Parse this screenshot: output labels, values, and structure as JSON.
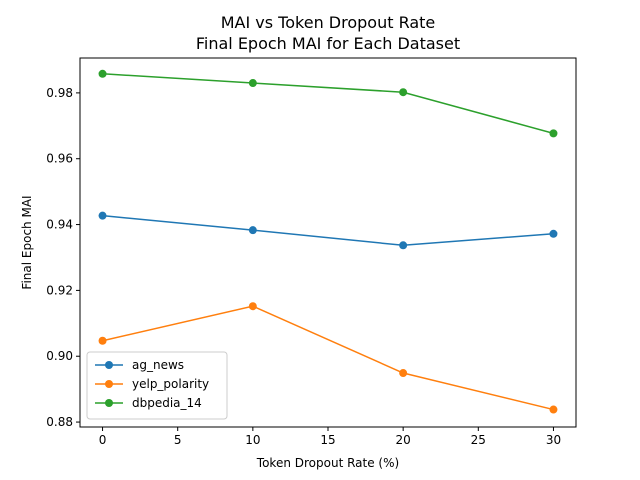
{
  "chart_data": {
    "type": "line",
    "title": "MAI vs Token Dropout Rate",
    "subtitle": "Final Epoch MAI for Each Dataset",
    "xlabel": "Token Dropout Rate (%)",
    "ylabel": "Final Epoch MAI",
    "x": [
      0,
      10,
      20,
      30
    ],
    "xlim": [
      -1.5,
      31.5
    ],
    "ylim": [
      0.8785,
      0.9906
    ],
    "xticks": [
      0,
      5,
      10,
      15,
      20,
      25,
      30
    ],
    "yticks": [
      0.88,
      0.9,
      0.92,
      0.94,
      0.96,
      0.98
    ],
    "xtick_labels": [
      "0",
      "5",
      "10",
      "15",
      "20",
      "25",
      "30"
    ],
    "ytick_labels": [
      "0.88",
      "0.90",
      "0.92",
      "0.94",
      "0.96",
      "0.98"
    ],
    "grid": false,
    "legend_position": "lower-left",
    "series": [
      {
        "name": "ag_news",
        "color": "#1f77b4",
        "values": [
          0.9427,
          0.9383,
          0.9337,
          0.9372
        ]
      },
      {
        "name": "yelp_polarity",
        "color": "#ff7f0e",
        "values": [
          0.9047,
          0.9152,
          0.8949,
          0.8838
        ]
      },
      {
        "name": "dbpedia_14",
        "color": "#2ca02c",
        "values": [
          0.9858,
          0.983,
          0.9802,
          0.9677
        ]
      }
    ]
  }
}
